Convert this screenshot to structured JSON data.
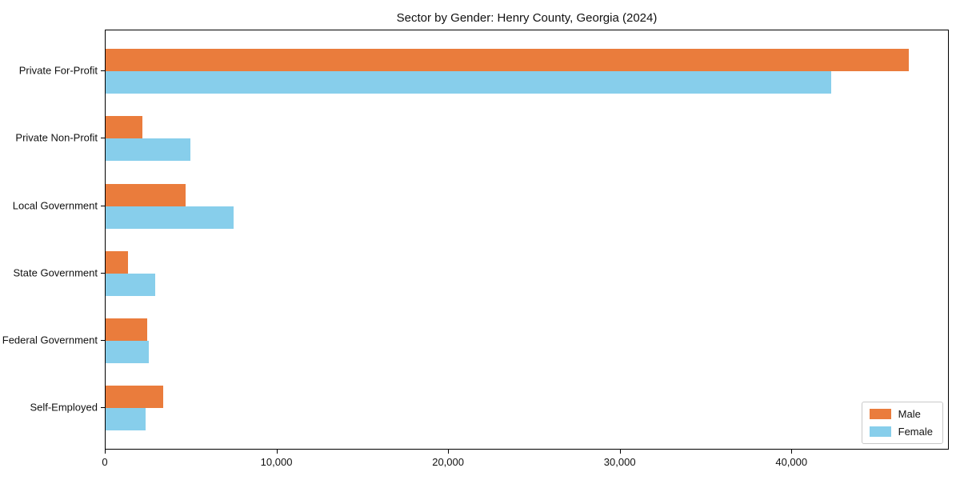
{
  "chart_data": {
    "type": "bar",
    "orientation": "horizontal",
    "title": "Sector by Gender: Henry County, Georgia (2024)",
    "categories": [
      "Private For-Profit",
      "Private Non-Profit",
      "Local Government",
      "State Government",
      "Federal Government",
      "Self-Employed"
    ],
    "series": [
      {
        "name": "Male",
        "color": "#ea7c3c",
        "values": [
          46800,
          2130,
          4650,
          1320,
          2420,
          3340
        ]
      },
      {
        "name": "Female",
        "color": "#87ceeb",
        "values": [
          42250,
          4930,
          7440,
          2890,
          2520,
          2330
        ]
      }
    ],
    "xlim": [
      0,
      49170
    ],
    "x_ticks": [
      0,
      10000,
      20000,
      30000,
      40000
    ],
    "x_tick_labels": [
      "0",
      "10,000",
      "20,000",
      "30,000",
      "40,000"
    ],
    "xlabel": "",
    "ylabel": "",
    "grid": false,
    "legend_position": "lower right",
    "frame_color": "#000000",
    "background_color": "#ffffff"
  }
}
